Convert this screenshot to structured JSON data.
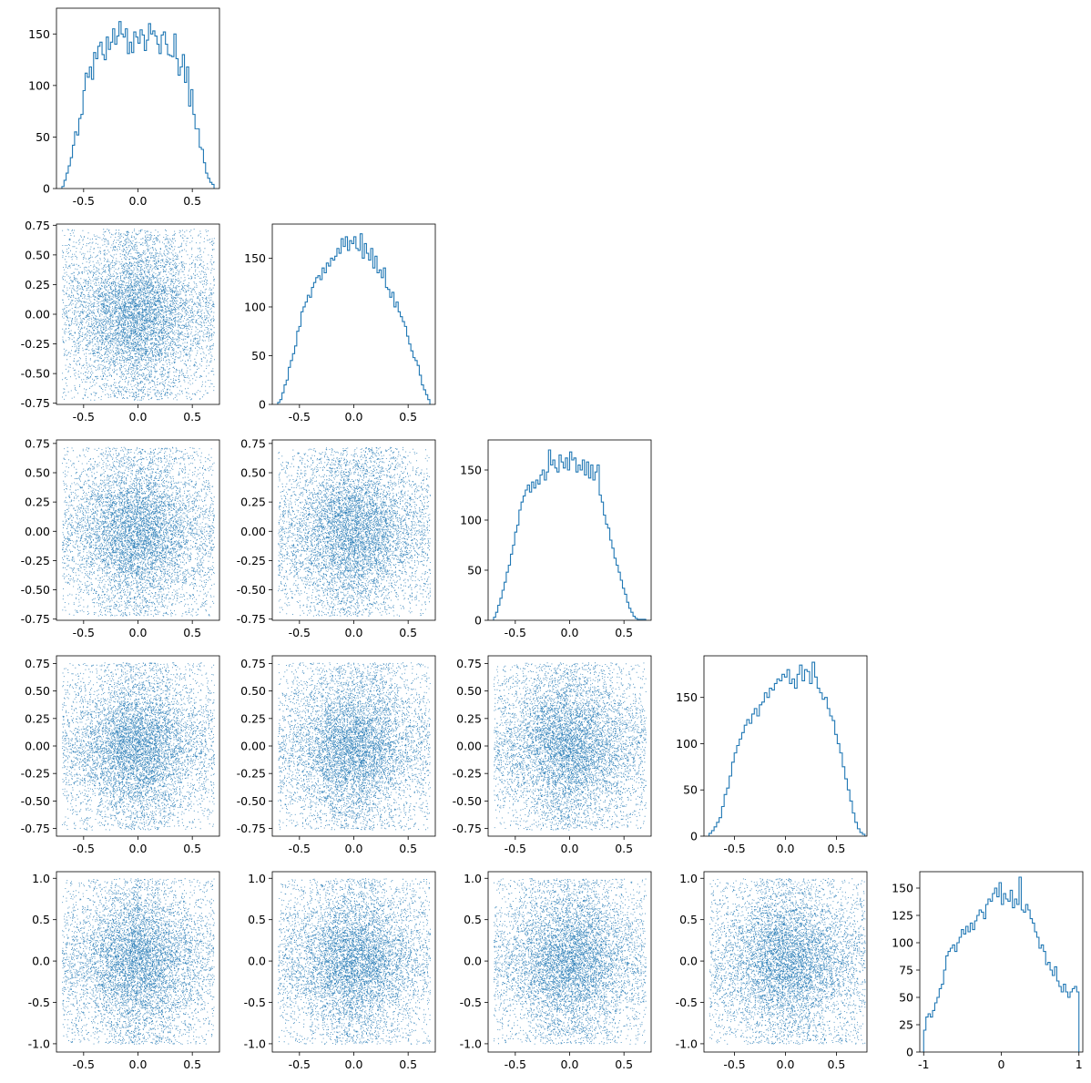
{
  "figure": {
    "layout": "corner-plot",
    "dimensions": 5,
    "color": "#1f77b4",
    "background": "#ffffff"
  },
  "chart_data": [
    {
      "panel": "hist-1",
      "type": "histogram",
      "x_range": [
        -0.75,
        0.75
      ],
      "ylim": [
        0,
        175
      ],
      "xticks": [
        "-0.5",
        "0.0",
        "0.5"
      ],
      "xtick_values": [
        -0.5,
        0,
        0.5
      ],
      "yticks": [
        "0",
        "50",
        "100",
        "150"
      ],
      "ytick_values": [
        0,
        50,
        100,
        150
      ],
      "bin_range": [
        -0.7,
        0.7
      ],
      "counts": [
        2,
        8,
        15,
        22,
        30,
        42,
        55,
        52,
        68,
        72,
        95,
        112,
        108,
        118,
        106,
        132,
        126,
        138,
        142,
        130,
        125,
        147,
        135,
        142,
        155,
        140,
        148,
        162,
        150,
        147,
        155,
        131,
        142,
        132,
        152,
        147,
        141,
        154,
        149,
        134,
        144,
        160,
        150,
        153,
        148,
        140,
        131,
        149,
        152,
        140,
        130,
        129,
        128,
        150,
        126,
        110,
        118,
        130,
        103,
        118,
        80,
        96,
        72,
        58,
        58,
        40,
        38,
        25,
        15,
        10,
        6,
        4
      ]
    },
    {
      "panel": "hist-2",
      "type": "histogram",
      "x_range": [
        -0.75,
        0.75
      ],
      "ylim": [
        0,
        185
      ],
      "xticks": [
        "-0.5",
        "0.0",
        "0.5"
      ],
      "xtick_values": [
        -0.5,
        0,
        0.5
      ],
      "yticks": [
        "0",
        "50",
        "100",
        "150"
      ],
      "ytick_values": [
        0,
        50,
        100,
        150
      ],
      "bin_range": [
        -0.7,
        0.7
      ],
      "counts": [
        2,
        5,
        12,
        20,
        25,
        38,
        45,
        52,
        60,
        75,
        80,
        95,
        100,
        105,
        112,
        110,
        120,
        125,
        130,
        132,
        128,
        140,
        135,
        145,
        142,
        150,
        148,
        152,
        160,
        155,
        170,
        162,
        172,
        158,
        168,
        165,
        172,
        160,
        158,
        175,
        150,
        165,
        155,
        148,
        160,
        140,
        152,
        135,
        138,
        130,
        140,
        120,
        118,
        110,
        115,
        100,
        105,
        95,
        90,
        85,
        80,
        70,
        62,
        55,
        48,
        45,
        40,
        30,
        20,
        15,
        10,
        5
      ]
    },
    {
      "panel": "hist-3",
      "type": "histogram",
      "x_range": [
        -0.75,
        0.75
      ],
      "ylim": [
        0,
        180
      ],
      "xticks": [
        "-0.5",
        "0.0",
        "0.5"
      ],
      "xtick_values": [
        -0.5,
        0,
        0.5
      ],
      "yticks": [
        "0",
        "50",
        "100",
        "150"
      ],
      "ytick_values": [
        0,
        50,
        100,
        150
      ],
      "bin_range": [
        -0.7,
        0.7
      ],
      "counts": [
        3,
        8,
        15,
        22,
        30,
        38,
        48,
        55,
        66,
        75,
        88,
        95,
        110,
        118,
        124,
        130,
        135,
        128,
        138,
        132,
        140,
        136,
        145,
        150,
        140,
        148,
        170,
        155,
        160,
        152,
        148,
        165,
        158,
        152,
        162,
        150,
        168,
        160,
        162,
        148,
        155,
        150,
        160,
        145,
        158,
        142,
        155,
        140,
        148,
        155,
        125,
        118,
        105,
        96,
        92,
        80,
        72,
        62,
        55,
        48,
        40,
        32,
        26,
        18,
        12,
        8,
        4,
        2,
        1,
        1,
        1,
        1
      ]
    },
    {
      "panel": "hist-4",
      "type": "histogram",
      "x_range": [
        -0.8,
        0.8
      ],
      "ylim": [
        0,
        195
      ],
      "xticks": [
        "-0.5",
        "0.0",
        "0.5"
      ],
      "xtick_values": [
        -0.5,
        0,
        0.5
      ],
      "yticks": [
        "0",
        "50",
        "100",
        "150"
      ],
      "ytick_values": [
        0,
        50,
        100,
        150
      ],
      "bin_range": [
        -0.75,
        0.78
      ],
      "counts": [
        3,
        6,
        10,
        15,
        20,
        32,
        45,
        52,
        65,
        80,
        90,
        98,
        105,
        112,
        120,
        126,
        122,
        132,
        138,
        130,
        142,
        145,
        155,
        150,
        160,
        158,
        165,
        170,
        168,
        175,
        172,
        180,
        165,
        170,
        160,
        175,
        185,
        168,
        180,
        178,
        165,
        188,
        172,
        160,
        155,
        148,
        150,
        138,
        130,
        125,
        110,
        100,
        90,
        75,
        62,
        50,
        38,
        25,
        15,
        8,
        4,
        2
      ]
    },
    {
      "panel": "hist-5",
      "type": "histogram",
      "x_range": [
        -1.05,
        1.05
      ],
      "ylim": [
        0,
        165
      ],
      "xticks": [
        "-1",
        "0",
        "1"
      ],
      "xtick_values": [
        -1,
        0,
        1
      ],
      "yticks": [
        "0",
        "25",
        "50",
        "75",
        "100",
        "125",
        "150"
      ],
      "ytick_values": [
        0,
        25,
        50,
        75,
        100,
        125,
        150
      ],
      "bin_range": [
        -1,
        1
      ],
      "counts": [
        20,
        32,
        35,
        32,
        38,
        45,
        50,
        58,
        62,
        75,
        88,
        92,
        95,
        98,
        92,
        100,
        105,
        112,
        108,
        115,
        110,
        118,
        112,
        120,
        125,
        130,
        128,
        122,
        135,
        140,
        138,
        145,
        150,
        142,
        155,
        135,
        145,
        140,
        138,
        148,
        132,
        140,
        135,
        160,
        130,
        128,
        135,
        130,
        122,
        118,
        110,
        105,
        95,
        98,
        92,
        80,
        82,
        75,
        70,
        78,
        65,
        60,
        55,
        62,
        55,
        50,
        55,
        58,
        60,
        55
      ]
    },
    {
      "panel": "scatter-2-1",
      "type": "scatter",
      "x_range": [
        -0.75,
        0.75
      ],
      "y_range": [
        -0.76,
        0.76
      ],
      "xticks": [
        "-0.5",
        "0.0",
        "0.5"
      ],
      "xtick_values": [
        -0.5,
        0,
        0.5
      ],
      "yticks": [
        "-0.75",
        "-0.50",
        "-0.25",
        "0.00",
        "0.25",
        "0.50",
        "0.75"
      ],
      "ytick_values": [
        -0.75,
        -0.5,
        -0.25,
        0,
        0.25,
        0.5,
        0.75
      ],
      "x_extent": [
        -0.7,
        0.7
      ],
      "y_extent": [
        -0.72,
        0.72
      ],
      "n_points": 7000,
      "seed": 11
    },
    {
      "panel": "scatter-3-1",
      "type": "scatter",
      "x_range": [
        -0.75,
        0.75
      ],
      "y_range": [
        -0.76,
        0.78
      ],
      "xticks": [
        "-0.5",
        "0.0",
        "0.5"
      ],
      "xtick_values": [
        -0.5,
        0,
        0.5
      ],
      "yticks": [
        "-0.75",
        "-0.50",
        "-0.25",
        "0.00",
        "0.25",
        "0.50",
        "0.75"
      ],
      "ytick_values": [
        -0.75,
        -0.5,
        -0.25,
        0,
        0.25,
        0.5,
        0.75
      ],
      "x_extent": [
        -0.7,
        0.7
      ],
      "y_extent": [
        -0.72,
        0.72
      ],
      "n_points": 7000,
      "seed": 21
    },
    {
      "panel": "scatter-3-2",
      "type": "scatter",
      "x_range": [
        -0.75,
        0.75
      ],
      "y_range": [
        -0.76,
        0.78
      ],
      "xticks": [
        "-0.5",
        "0.0",
        "0.5"
      ],
      "xtick_values": [
        -0.5,
        0,
        0.5
      ],
      "yticks": [
        "-0.75",
        "-0.50",
        "-0.25",
        "0.00",
        "0.25",
        "0.50",
        "0.75"
      ],
      "ytick_values": [
        -0.75,
        -0.5,
        -0.25,
        0,
        0.25,
        0.5,
        0.75
      ],
      "x_extent": [
        -0.7,
        0.7
      ],
      "y_extent": [
        -0.72,
        0.72
      ],
      "n_points": 7000,
      "seed": 22
    },
    {
      "panel": "scatter-4-1",
      "type": "scatter",
      "x_range": [
        -0.75,
        0.75
      ],
      "y_range": [
        -0.82,
        0.82
      ],
      "xticks": [
        "-0.5",
        "0.0",
        "0.5"
      ],
      "xtick_values": [
        -0.5,
        0,
        0.5
      ],
      "yticks": [
        "-0.75",
        "-0.50",
        "-0.25",
        "0.00",
        "0.25",
        "0.50",
        "0.75"
      ],
      "ytick_values": [
        -0.75,
        -0.5,
        -0.25,
        0,
        0.25,
        0.5,
        0.75
      ],
      "x_extent": [
        -0.7,
        0.7
      ],
      "y_extent": [
        -0.76,
        0.76
      ],
      "n_points": 7000,
      "seed": 31
    },
    {
      "panel": "scatter-4-2",
      "type": "scatter",
      "x_range": [
        -0.75,
        0.75
      ],
      "y_range": [
        -0.82,
        0.82
      ],
      "xticks": [
        "-0.5",
        "0.0",
        "0.5"
      ],
      "xtick_values": [
        -0.5,
        0,
        0.5
      ],
      "yticks": [
        "-0.75",
        "-0.50",
        "-0.25",
        "0.00",
        "0.25",
        "0.50",
        "0.75"
      ],
      "ytick_values": [
        -0.75,
        -0.5,
        -0.25,
        0,
        0.25,
        0.5,
        0.75
      ],
      "x_extent": [
        -0.7,
        0.7
      ],
      "y_extent": [
        -0.76,
        0.76
      ],
      "n_points": 7000,
      "seed": 32
    },
    {
      "panel": "scatter-4-3",
      "type": "scatter",
      "x_range": [
        -0.75,
        0.75
      ],
      "y_range": [
        -0.82,
        0.82
      ],
      "xticks": [
        "-0.5",
        "0.0",
        "0.5"
      ],
      "xtick_values": [
        -0.5,
        0,
        0.5
      ],
      "yticks": [
        "-0.75",
        "-0.50",
        "-0.25",
        "0.00",
        "0.25",
        "0.50",
        "0.75"
      ],
      "ytick_values": [
        -0.75,
        -0.5,
        -0.25,
        0,
        0.25,
        0.5,
        0.75
      ],
      "x_extent": [
        -0.7,
        0.7
      ],
      "y_extent": [
        -0.76,
        0.76
      ],
      "n_points": 7000,
      "seed": 33
    },
    {
      "panel": "scatter-5-1",
      "type": "scatter",
      "x_range": [
        -0.75,
        0.75
      ],
      "y_range": [
        -1.1,
        1.08
      ],
      "xticks": [
        "-0.5",
        "0.0",
        "0.5"
      ],
      "xtick_values": [
        -0.5,
        0,
        0.5
      ],
      "yticks": [
        "-1.0",
        "-0.5",
        "0.0",
        "0.5",
        "1.0"
      ],
      "ytick_values": [
        -1,
        -0.5,
        0,
        0.5,
        1
      ],
      "x_extent": [
        -0.7,
        0.7
      ],
      "y_extent": [
        -1,
        1
      ],
      "n_points": 7000,
      "seed": 41
    },
    {
      "panel": "scatter-5-2",
      "type": "scatter",
      "x_range": [
        -0.75,
        0.75
      ],
      "y_range": [
        -1.1,
        1.08
      ],
      "xticks": [
        "-0.5",
        "0.0",
        "0.5"
      ],
      "xtick_values": [
        -0.5,
        0,
        0.5
      ],
      "yticks": [
        "-1.0",
        "-0.5",
        "0.0",
        "0.5",
        "1.0"
      ],
      "ytick_values": [
        -1,
        -0.5,
        0,
        0.5,
        1
      ],
      "x_extent": [
        -0.7,
        0.7
      ],
      "y_extent": [
        -1,
        1
      ],
      "n_points": 7000,
      "seed": 42
    },
    {
      "panel": "scatter-5-3",
      "type": "scatter",
      "x_range": [
        -0.75,
        0.75
      ],
      "y_range": [
        -1.1,
        1.08
      ],
      "xticks": [
        "-0.5",
        "0.0",
        "0.5"
      ],
      "xtick_values": [
        -0.5,
        0,
        0.5
      ],
      "yticks": [
        "-1.0",
        "-0.5",
        "0.0",
        "0.5",
        "1.0"
      ],
      "ytick_values": [
        -1,
        -0.5,
        0,
        0.5,
        1
      ],
      "x_extent": [
        -0.7,
        0.7
      ],
      "y_extent": [
        -1,
        1
      ],
      "n_points": 7000,
      "seed": 43
    },
    {
      "panel": "scatter-5-4",
      "type": "scatter",
      "x_range": [
        -0.8,
        0.8
      ],
      "y_range": [
        -1.1,
        1.08
      ],
      "xticks": [
        "-0.5",
        "0.0",
        "0.5"
      ],
      "xtick_values": [
        -0.5,
        0,
        0.5
      ],
      "yticks": [
        "-1.0",
        "-0.5",
        "0.0",
        "0.5",
        "1.0"
      ],
      "ytick_values": [
        -1,
        -0.5,
        0,
        0.5,
        1
      ],
      "x_extent": [
        -0.75,
        0.78
      ],
      "y_extent": [
        -1,
        1
      ],
      "n_points": 7000,
      "seed": 44
    }
  ]
}
